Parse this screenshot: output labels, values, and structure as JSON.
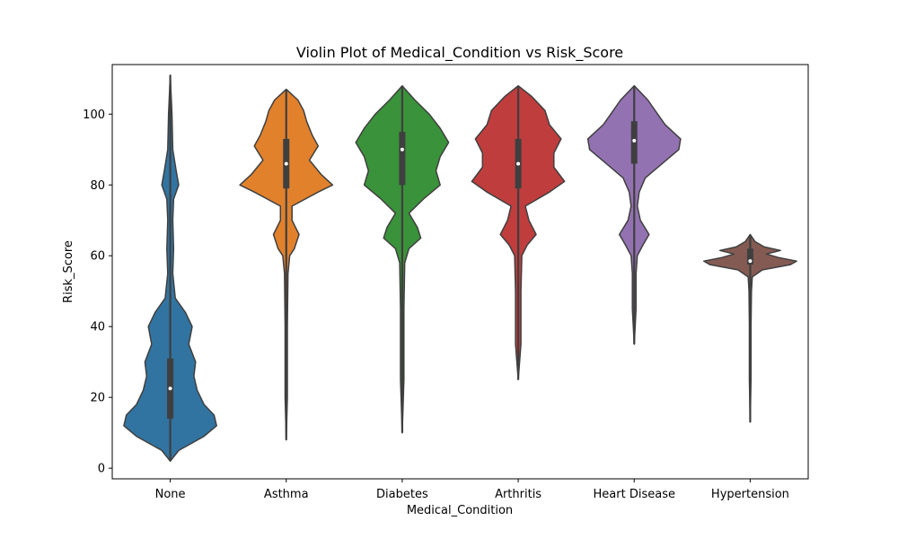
{
  "chart_data": {
    "type": "violin",
    "title": "Violin Plot of Medical_Condition vs Risk_Score",
    "xlabel": "Medical_Condition",
    "ylabel": "Risk_Score",
    "ylim": [
      -3,
      114
    ],
    "yticks": [
      0,
      20,
      40,
      60,
      80,
      100
    ],
    "grid": false,
    "categories": [
      "None",
      "Asthma",
      "Diabetes",
      "Arthritis",
      "Heart Disease",
      "Hypertension"
    ],
    "series": [
      {
        "category": "None",
        "color": "#3274a1",
        "min": 2,
        "max": 111,
        "q1": 14,
        "median": 22.5,
        "q3": 31,
        "whisker_low": 8,
        "whisker_high": 45,
        "density": [
          [
            2,
            0.0
          ],
          [
            5,
            0.1
          ],
          [
            9,
            0.4
          ],
          [
            12,
            0.55
          ],
          [
            15,
            0.52
          ],
          [
            18,
            0.4
          ],
          [
            22,
            0.32
          ],
          [
            26,
            0.28
          ],
          [
            30,
            0.3
          ],
          [
            35,
            0.22
          ],
          [
            40,
            0.26
          ],
          [
            44,
            0.18
          ],
          [
            48,
            0.06
          ],
          [
            55,
            0.03
          ],
          [
            62,
            0.04
          ],
          [
            70,
            0.03
          ],
          [
            76,
            0.04
          ],
          [
            80,
            0.1
          ],
          [
            84,
            0.07
          ],
          [
            90,
            0.03
          ],
          [
            100,
            0.02
          ],
          [
            111,
            0.0
          ]
        ]
      },
      {
        "category": "Asthma",
        "color": "#e1812c",
        "min": 8,
        "max": 107,
        "q1": 79,
        "median": 86,
        "q3": 93,
        "whisker_low": 64,
        "whisker_high": 104,
        "density": [
          [
            8,
            0.0
          ],
          [
            20,
            0.02
          ],
          [
            40,
            0.02
          ],
          [
            55,
            0.03
          ],
          [
            60,
            0.06
          ],
          [
            62,
            0.14
          ],
          [
            66,
            0.22
          ],
          [
            70,
            0.1
          ],
          [
            74,
            0.1
          ],
          [
            78,
            0.55
          ],
          [
            80,
            0.8
          ],
          [
            83,
            0.6
          ],
          [
            87,
            0.4
          ],
          [
            91,
            0.55
          ],
          [
            94,
            0.45
          ],
          [
            98,
            0.35
          ],
          [
            101,
            0.3
          ],
          [
            104,
            0.2
          ],
          [
            107,
            0.0
          ]
        ]
      },
      {
        "category": "Diabetes",
        "color": "#3a923a",
        "min": 10,
        "max": 108,
        "q1": 80,
        "median": 90,
        "q3": 95,
        "whisker_low": 66,
        "whisker_high": 106,
        "density": [
          [
            10,
            0.0
          ],
          [
            25,
            0.02
          ],
          [
            45,
            0.02
          ],
          [
            58,
            0.03
          ],
          [
            62,
            0.08
          ],
          [
            65,
            0.22
          ],
          [
            68,
            0.18
          ],
          [
            72,
            0.08
          ],
          [
            76,
            0.25
          ],
          [
            80,
            0.45
          ],
          [
            84,
            0.4
          ],
          [
            88,
            0.45
          ],
          [
            92,
            0.55
          ],
          [
            96,
            0.45
          ],
          [
            100,
            0.32
          ],
          [
            104,
            0.15
          ],
          [
            108,
            0.0
          ]
        ]
      },
      {
        "category": "Arthritis",
        "color": "#c03d3e",
        "min": 25,
        "max": 108,
        "q1": 79,
        "median": 86,
        "q3": 93,
        "whisker_low": 66,
        "whisker_high": 104,
        "density": [
          [
            25,
            0.0
          ],
          [
            35,
            0.03
          ],
          [
            50,
            0.03
          ],
          [
            60,
            0.04
          ],
          [
            63,
            0.1
          ],
          [
            66,
            0.2
          ],
          [
            70,
            0.12
          ],
          [
            74,
            0.08
          ],
          [
            78,
            0.35
          ],
          [
            81,
            0.52
          ],
          [
            85,
            0.4
          ],
          [
            89,
            0.4
          ],
          [
            93,
            0.48
          ],
          [
            97,
            0.35
          ],
          [
            101,
            0.3
          ],
          [
            105,
            0.15
          ],
          [
            108,
            0.0
          ]
        ]
      },
      {
        "category": "Heart Disease",
        "color": "#9372b2",
        "min": 35,
        "max": 108,
        "q1": 86,
        "median": 92.5,
        "q3": 98,
        "whisker_low": 68,
        "whisker_high": 106,
        "density": [
          [
            35,
            0.0
          ],
          [
            45,
            0.03
          ],
          [
            55,
            0.03
          ],
          [
            60,
            0.05
          ],
          [
            63,
            0.14
          ],
          [
            66,
            0.24
          ],
          [
            70,
            0.1
          ],
          [
            74,
            0.05
          ],
          [
            78,
            0.08
          ],
          [
            82,
            0.18
          ],
          [
            86,
            0.45
          ],
          [
            90,
            0.72
          ],
          [
            93,
            0.75
          ],
          [
            97,
            0.5
          ],
          [
            100,
            0.38
          ],
          [
            104,
            0.22
          ],
          [
            108,
            0.0
          ]
        ]
      },
      {
        "category": "Hypertension",
        "color": "#845b53",
        "min": 13,
        "max": 66,
        "q1": 57.5,
        "median": 58.5,
        "q3": 62,
        "whisker_low": 56.5,
        "whisker_high": 65,
        "density": [
          [
            13,
            0.0
          ],
          [
            25,
            0.02
          ],
          [
            40,
            0.02
          ],
          [
            50,
            0.03
          ],
          [
            54,
            0.05
          ],
          [
            56,
            0.3
          ],
          [
            57.5,
            1.0
          ],
          [
            58.5,
            1.15
          ],
          [
            59.5,
            0.7
          ],
          [
            60.5,
            0.4
          ],
          [
            61.5,
            0.75
          ],
          [
            62.5,
            0.35
          ],
          [
            64,
            0.12
          ],
          [
            66,
            0.0
          ]
        ]
      }
    ]
  }
}
